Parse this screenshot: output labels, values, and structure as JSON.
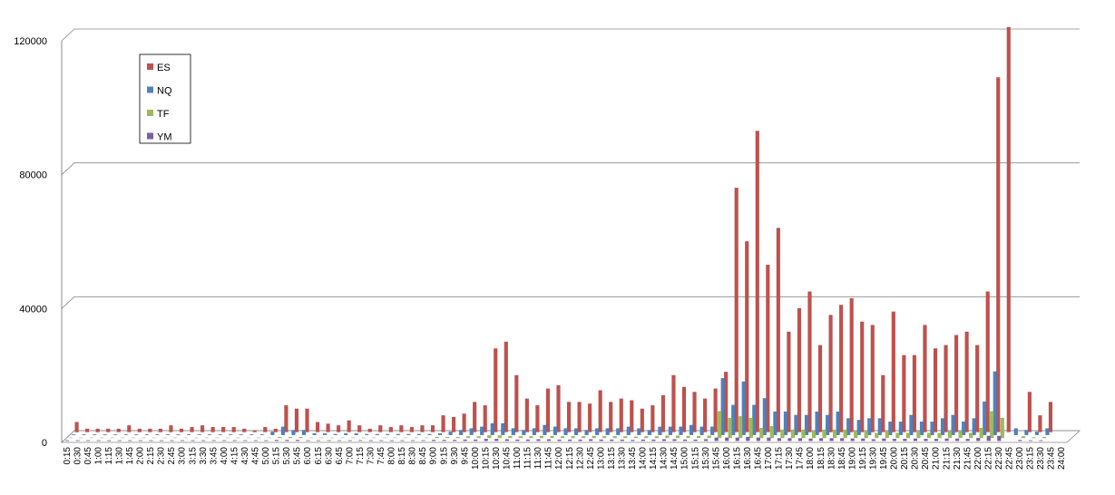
{
  "chart_data": {
    "type": "bar",
    "categories": [
      "0:15",
      "0:30",
      "0:45",
      "1:00",
      "1:15",
      "1:30",
      "1:45",
      "2:00",
      "2:15",
      "2:30",
      "2:45",
      "3:00",
      "3:15",
      "3:30",
      "3:45",
      "4:00",
      "4:15",
      "4:30",
      "4:45",
      "5:00",
      "5:15",
      "5:30",
      "5:45",
      "6:00",
      "6:15",
      "6:30",
      "6:45",
      "7:00",
      "7:15",
      "7:30",
      "7:45",
      "8:00",
      "8:15",
      "8:30",
      "8:45",
      "9:00",
      "9:15",
      "9:30",
      "9:45",
      "10:00",
      "10:15",
      "10:30",
      "10:45",
      "11:00",
      "11:15",
      "11:30",
      "11:45",
      "12:00",
      "12:15",
      "12:30",
      "12:45",
      "13:00",
      "13:15",
      "13:30",
      "13:45",
      "14:00",
      "14:15",
      "14:30",
      "14:45",
      "15:00",
      "15:15",
      "15:30",
      "15:45",
      "16:00",
      "16:15",
      "16:30",
      "16:45",
      "17:00",
      "17:15",
      "17:30",
      "17:45",
      "18:00",
      "18:15",
      "18:30",
      "18:45",
      "19:00",
      "19:15",
      "19:30",
      "19:45",
      "20:00",
      "20:15",
      "20:30",
      "20:45",
      "21:00",
      "21:15",
      "21:30",
      "21:45",
      "22:00",
      "22:15",
      "22:30",
      "22:45",
      "23:00",
      "23:15",
      "23:30",
      "23:45",
      "24:00"
    ],
    "series": [
      {
        "name": "YM",
        "color": "#7b5ea7",
        "values": [
          200,
          200,
          200,
          200,
          200,
          200,
          200,
          200,
          200,
          200,
          200,
          200,
          200,
          200,
          200,
          200,
          200,
          200,
          200,
          200,
          300,
          300,
          300,
          200,
          200,
          200,
          200,
          200,
          200,
          200,
          200,
          200,
          200,
          200,
          200,
          300,
          300,
          300,
          400,
          400,
          600,
          600,
          500,
          400,
          400,
          500,
          500,
          400,
          400,
          400,
          500,
          400,
          400,
          400,
          300,
          400,
          400,
          500,
          500,
          400,
          400,
          500,
          1000,
          1000,
          1000,
          1200,
          1000,
          1000,
          800,
          800,
          800,
          700,
          800,
          800,
          800,
          700,
          700,
          500,
          700,
          600,
          600,
          700,
          600,
          600,
          700,
          700,
          600,
          900,
          1500,
          1500,
          0,
          300,
          200,
          200,
          0,
          0
        ]
      },
      {
        "name": "TF",
        "color": "#9bbb59",
        "values": [
          100,
          100,
          100,
          100,
          100,
          100,
          100,
          100,
          100,
          100,
          100,
          100,
          100,
          100,
          100,
          100,
          100,
          100,
          100,
          100,
          300,
          300,
          300,
          100,
          100,
          100,
          100,
          100,
          100,
          100,
          100,
          100,
          100,
          100,
          100,
          300,
          300,
          300,
          500,
          500,
          800,
          800,
          600,
          500,
          500,
          600,
          600,
          500,
          500,
          500,
          600,
          500,
          500,
          500,
          400,
          500,
          500,
          700,
          700,
          600,
          600,
          700,
          8000,
          6000,
          6500,
          6000,
          3000,
          3500,
          2500,
          2500,
          2500,
          2000,
          2500,
          2500,
          2500,
          2000,
          2000,
          1500,
          2000,
          1500,
          1500,
          2000,
          1500,
          1500,
          2000,
          2000,
          1500,
          3000,
          8000,
          6000,
          0,
          500,
          200,
          300,
          0,
          0
        ]
      },
      {
        "name": "NQ",
        "color": "#4f81bd",
        "values": [
          200,
          200,
          200,
          200,
          200,
          200,
          200,
          200,
          200,
          200,
          200,
          200,
          200,
          200,
          200,
          200,
          200,
          200,
          200,
          1000,
          2500,
          1500,
          1500,
          500,
          500,
          300,
          500,
          500,
          300,
          300,
          300,
          300,
          300,
          300,
          300,
          500,
          1000,
          1500,
          2000,
          2500,
          3500,
          3500,
          2000,
          1500,
          2000,
          3000,
          2500,
          2000,
          2000,
          1500,
          2000,
          2000,
          2000,
          2500,
          2000,
          1500,
          2500,
          2500,
          2500,
          3000,
          2500,
          2500,
          17000,
          9000,
          16000,
          9000,
          11000,
          7000,
          7000,
          6000,
          6000,
          7000,
          6000,
          7000,
          5000,
          4500,
          5000,
          5000,
          4000,
          4000,
          6000,
          4000,
          4000,
          5000,
          6000,
          4000,
          5000,
          10000,
          19000,
          0,
          2000,
          1500,
          1000,
          2000,
          0,
          0
        ]
      },
      {
        "name": "ES",
        "color": "#c0504d",
        "values": [
          3000,
          1000,
          1000,
          1000,
          1000,
          2000,
          1000,
          1000,
          1000,
          2000,
          1000,
          1500,
          2000,
          1500,
          1500,
          1500,
          1000,
          500,
          1500,
          1000,
          8000,
          7000,
          7000,
          3000,
          2500,
          2000,
          3500,
          2000,
          1000,
          2000,
          1500,
          2000,
          1500,
          2000,
          2000,
          5000,
          4500,
          5500,
          9000,
          8000,
          25000,
          27000,
          17000,
          10000,
          8000,
          13000,
          14000,
          9000,
          9000,
          8500,
          12500,
          9000,
          10000,
          9500,
          7000,
          8000,
          11000,
          17000,
          13500,
          12000,
          10000,
          13000,
          18000,
          73000,
          57000,
          90000,
          50000,
          61000,
          30000,
          37000,
          42000,
          26000,
          35000,
          38000,
          40000,
          33000,
          32000,
          17000,
          36000,
          23000,
          23000,
          32000,
          25000,
          26000,
          29000,
          30000,
          26000,
          42000,
          106000,
          121000,
          0,
          12000,
          5000,
          9000,
          0,
          0
        ]
      }
    ],
    "ylim": [
      0,
      120000
    ],
    "yticks": [
      0,
      40000,
      80000,
      120000
    ],
    "grid": true,
    "legend": "upper-left"
  }
}
